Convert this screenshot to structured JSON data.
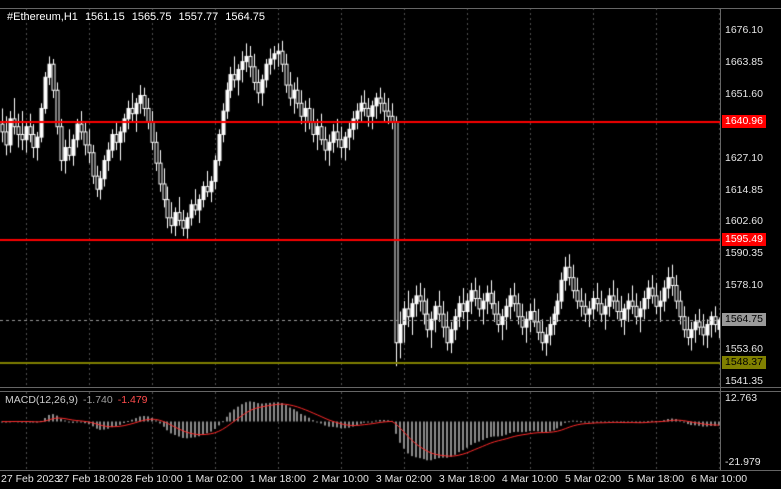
{
  "header": {
    "symbol": "#Ethereum,H1",
    "open": "1561.15",
    "high": "1565.75",
    "low": "1557.77",
    "close": "1564.75"
  },
  "macd_header": {
    "label": "MACD(12,26,9)",
    "value": "-1.740",
    "signal": "-1.479"
  },
  "colors": {
    "background": "#000000",
    "foreground": "#ffffff",
    "grid": "#4f4f4f",
    "border": "#666666",
    "bull_candle": "#ffffff",
    "bear_candle": "#000000",
    "candle_outline": "#ffffff",
    "resistance_line": "#ff0000",
    "support_line": "#808000",
    "current_price_label_bg": "#9a9a9a",
    "current_price_label_fg": "#000000",
    "macd_histogram": "#8c8c8c",
    "macd_signal": "#ff2a2a",
    "axis_text": "#e6e6e6"
  },
  "chart_data": {
    "type": "candlestick",
    "symbol": "#Ethereum",
    "timeframe": "H1",
    "last_ohlc": {
      "open": 1561.15,
      "high": 1565.75,
      "low": 1557.77,
      "close": 1564.75
    },
    "price_axis": {
      "range_top": 1684.6,
      "range_bottom": 1539.0,
      "visible_ticks": [
        1676.1,
        1663.85,
        1651.6,
        1627.1,
        1614.85,
        1602.6,
        1590.35,
        1578.1,
        1553.6,
        1541.35
      ]
    },
    "time_labels": [
      {
        "text": "27 Feb 2023",
        "candle_index": 6
      },
      {
        "text": "27 Feb 18:00",
        "candle_index": 22
      },
      {
        "text": "28 Feb 10:00",
        "candle_index": 38
      },
      {
        "text": "1 Mar 02:00",
        "candle_index": 54
      },
      {
        "text": "1 Mar 18:00",
        "candle_index": 70
      },
      {
        "text": "2 Mar 10:00",
        "candle_index": 86
      },
      {
        "text": "3 Mar 02:00",
        "candle_index": 102
      },
      {
        "text": "3 Mar 18:00",
        "candle_index": 118
      },
      {
        "text": "4 Mar 10:00",
        "candle_index": 134
      },
      {
        "text": "5 Mar 02:00",
        "candle_index": 150
      },
      {
        "text": "5 Mar 18:00",
        "candle_index": 166
      },
      {
        "text": "6 Mar 10:00",
        "candle_index": 182
      }
    ],
    "horizontal_lines": [
      {
        "price": 1640.96,
        "color": "#ff0000",
        "label_bg": "#ff0000",
        "label_fg": "#ffffff"
      },
      {
        "price": 1595.49,
        "color": "#ff0000",
        "label_bg": "#ff0000",
        "label_fg": "#ffffff"
      },
      {
        "price": 1548.37,
        "color": "#808000",
        "label_bg": "#808000",
        "label_fg": "#000000"
      }
    ],
    "current_price": 1564.75,
    "candles_ohlc": [
      [
        1640,
        1646,
        1633,
        1637
      ],
      [
        1637,
        1643,
        1628,
        1632
      ],
      [
        1632,
        1645,
        1629,
        1642
      ],
      [
        1642,
        1650,
        1636,
        1639
      ],
      [
        1639,
        1644,
        1631,
        1636
      ],
      [
        1636,
        1645,
        1630,
        1634
      ],
      [
        1634,
        1641,
        1629,
        1639
      ],
      [
        1639,
        1644,
        1633,
        1636
      ],
      [
        1636,
        1640,
        1627,
        1631
      ],
      [
        1631,
        1637,
        1626,
        1635
      ],
      [
        1635,
        1648,
        1633,
        1646
      ],
      [
        1646,
        1660,
        1644,
        1658
      ],
      [
        1658,
        1666,
        1655,
        1663
      ],
      [
        1663,
        1665,
        1650,
        1653
      ],
      [
        1653,
        1656,
        1636,
        1639
      ],
      [
        1639,
        1642,
        1622,
        1626
      ],
      [
        1626,
        1634,
        1621,
        1631
      ],
      [
        1631,
        1638,
        1626,
        1628
      ],
      [
        1628,
        1636,
        1624,
        1634
      ],
      [
        1634,
        1642,
        1631,
        1640
      ],
      [
        1640,
        1645,
        1634,
        1637
      ],
      [
        1637,
        1641,
        1628,
        1632
      ],
      [
        1632,
        1638,
        1625,
        1629
      ],
      [
        1629,
        1632,
        1617,
        1620
      ],
      [
        1620,
        1624,
        1612,
        1615
      ],
      [
        1615,
        1622,
        1611,
        1619
      ],
      [
        1619,
        1628,
        1616,
        1626
      ],
      [
        1626,
        1633,
        1622,
        1630
      ],
      [
        1630,
        1638,
        1627,
        1636
      ],
      [
        1636,
        1641,
        1630,
        1633
      ],
      [
        1633,
        1639,
        1626,
        1637
      ],
      [
        1637,
        1644,
        1633,
        1642
      ],
      [
        1642,
        1649,
        1638,
        1646
      ],
      [
        1646,
        1652,
        1641,
        1644
      ],
      [
        1644,
        1650,
        1637,
        1648
      ],
      [
        1648,
        1655,
        1644,
        1651
      ],
      [
        1651,
        1654,
        1643,
        1646
      ],
      [
        1646,
        1650,
        1638,
        1641
      ],
      [
        1641,
        1645,
        1630,
        1633
      ],
      [
        1633,
        1637,
        1622,
        1625
      ],
      [
        1625,
        1630,
        1614,
        1617
      ],
      [
        1617,
        1623,
        1608,
        1611
      ],
      [
        1611,
        1616,
        1600,
        1604
      ],
      [
        1604,
        1610,
        1598,
        1601
      ],
      [
        1601,
        1608,
        1597,
        1606
      ],
      [
        1606,
        1612,
        1601,
        1603
      ],
      [
        1603,
        1607,
        1597,
        1600
      ],
      [
        1600,
        1606,
        1596,
        1604
      ],
      [
        1604,
        1611,
        1601,
        1609
      ],
      [
        1609,
        1615,
        1605,
        1607
      ],
      [
        1607,
        1613,
        1602,
        1611
      ],
      [
        1611,
        1618,
        1608,
        1616
      ],
      [
        1616,
        1622,
        1612,
        1614
      ],
      [
        1614,
        1620,
        1610,
        1618
      ],
      [
        1618,
        1628,
        1615,
        1626
      ],
      [
        1626,
        1638,
        1624,
        1636
      ],
      [
        1636,
        1648,
        1633,
        1645
      ],
      [
        1645,
        1656,
        1642,
        1653
      ],
      [
        1653,
        1662,
        1650,
        1659
      ],
      [
        1659,
        1666,
        1654,
        1657
      ],
      [
        1657,
        1663,
        1651,
        1661
      ],
      [
        1661,
        1668,
        1656,
        1664
      ],
      [
        1664,
        1671,
        1660,
        1666
      ],
      [
        1666,
        1670,
        1658,
        1662
      ],
      [
        1662,
        1667,
        1653,
        1656
      ],
      [
        1656,
        1661,
        1648,
        1652
      ],
      [
        1652,
        1659,
        1647,
        1657
      ],
      [
        1657,
        1665,
        1654,
        1663
      ],
      [
        1663,
        1669,
        1659,
        1665
      ],
      [
        1665,
        1670,
        1661,
        1667
      ],
      [
        1667,
        1671,
        1662,
        1668
      ],
      [
        1668,
        1672,
        1660,
        1663
      ],
      [
        1663,
        1667,
        1652,
        1655
      ],
      [
        1655,
        1660,
        1647,
        1650
      ],
      [
        1650,
        1656,
        1644,
        1653
      ],
      [
        1653,
        1658,
        1646,
        1648
      ],
      [
        1648,
        1653,
        1640,
        1643
      ],
      [
        1643,
        1649,
        1637,
        1646
      ],
      [
        1646,
        1650,
        1638,
        1641
      ],
      [
        1641,
        1646,
        1633,
        1636
      ],
      [
        1636,
        1642,
        1630,
        1639
      ],
      [
        1639,
        1644,
        1632,
        1634
      ],
      [
        1634,
        1639,
        1626,
        1630
      ],
      [
        1630,
        1636,
        1624,
        1633
      ],
      [
        1633,
        1640,
        1629,
        1637
      ],
      [
        1637,
        1642,
        1631,
        1634
      ],
      [
        1634,
        1639,
        1627,
        1631
      ],
      [
        1631,
        1637,
        1626,
        1635
      ],
      [
        1635,
        1641,
        1630,
        1638
      ],
      [
        1638,
        1645,
        1634,
        1642
      ],
      [
        1642,
        1648,
        1638,
        1645
      ],
      [
        1645,
        1651,
        1641,
        1648
      ],
      [
        1648,
        1653,
        1643,
        1646
      ],
      [
        1646,
        1650,
        1639,
        1643
      ],
      [
        1643,
        1649,
        1638,
        1647
      ],
      [
        1647,
        1652,
        1642,
        1650
      ],
      [
        1650,
        1654,
        1644,
        1648
      ],
      [
        1648,
        1652,
        1641,
        1645
      ],
      [
        1645,
        1650,
        1640,
        1643
      ],
      [
        1643,
        1648,
        1638,
        1641
      ],
      [
        1641,
        1643,
        1547,
        1556
      ],
      [
        1556,
        1568,
        1550,
        1563
      ],
      [
        1563,
        1572,
        1556,
        1569
      ],
      [
        1569,
        1576,
        1562,
        1566
      ],
      [
        1566,
        1573,
        1559,
        1571
      ],
      [
        1571,
        1578,
        1566,
        1574
      ],
      [
        1574,
        1579,
        1568,
        1572
      ],
      [
        1572,
        1577,
        1563,
        1567
      ],
      [
        1567,
        1573,
        1558,
        1561
      ],
      [
        1561,
        1568,
        1554,
        1565
      ],
      [
        1565,
        1572,
        1560,
        1570
      ],
      [
        1570,
        1576,
        1564,
        1567
      ],
      [
        1567,
        1572,
        1558,
        1562
      ],
      [
        1562,
        1568,
        1553,
        1556
      ],
      [
        1556,
        1564,
        1552,
        1561
      ],
      [
        1561,
        1569,
        1557,
        1566
      ],
      [
        1566,
        1574,
        1562,
        1571
      ],
      [
        1571,
        1577,
        1565,
        1568
      ],
      [
        1568,
        1575,
        1561,
        1572
      ],
      [
        1572,
        1579,
        1567,
        1576
      ],
      [
        1576,
        1581,
        1570,
        1573
      ],
      [
        1573,
        1578,
        1566,
        1569
      ],
      [
        1569,
        1575,
        1563,
        1572
      ],
      [
        1572,
        1578,
        1567,
        1575
      ],
      [
        1575,
        1580,
        1569,
        1571
      ],
      [
        1571,
        1576,
        1564,
        1567
      ],
      [
        1567,
        1572,
        1560,
        1563
      ],
      [
        1563,
        1569,
        1557,
        1566
      ],
      [
        1566,
        1573,
        1561,
        1570
      ],
      [
        1570,
        1577,
        1565,
        1574
      ],
      [
        1574,
        1579,
        1568,
        1571
      ],
      [
        1571,
        1575,
        1563,
        1566
      ],
      [
        1566,
        1571,
        1559,
        1562
      ],
      [
        1562,
        1568,
        1556,
        1565
      ],
      [
        1565,
        1571,
        1560,
        1568
      ],
      [
        1568,
        1573,
        1562,
        1564
      ],
      [
        1564,
        1569,
        1557,
        1560
      ],
      [
        1560,
        1565,
        1553,
        1556
      ],
      [
        1556,
        1562,
        1551,
        1559
      ],
      [
        1559,
        1566,
        1555,
        1563
      ],
      [
        1563,
        1570,
        1559,
        1567
      ],
      [
        1567,
        1575,
        1564,
        1572
      ],
      [
        1572,
        1583,
        1569,
        1580
      ],
      [
        1580,
        1589,
        1576,
        1585
      ],
      [
        1585,
        1590,
        1578,
        1581
      ],
      [
        1581,
        1586,
        1573,
        1576
      ],
      [
        1576,
        1581,
        1569,
        1572
      ],
      [
        1572,
        1577,
        1566,
        1570
      ],
      [
        1570,
        1575,
        1564,
        1567
      ],
      [
        1567,
        1572,
        1562,
        1569
      ],
      [
        1569,
        1576,
        1565,
        1573
      ],
      [
        1573,
        1579,
        1568,
        1571
      ],
      [
        1571,
        1576,
        1564,
        1567
      ],
      [
        1567,
        1573,
        1561,
        1570
      ],
      [
        1570,
        1577,
        1566,
        1574
      ],
      [
        1574,
        1580,
        1569,
        1572
      ],
      [
        1572,
        1577,
        1565,
        1568
      ],
      [
        1568,
        1574,
        1562,
        1565
      ],
      [
        1565,
        1571,
        1559,
        1569
      ],
      [
        1569,
        1575,
        1564,
        1572
      ],
      [
        1572,
        1578,
        1567,
        1570
      ],
      [
        1570,
        1575,
        1563,
        1566
      ],
      [
        1566,
        1572,
        1560,
        1569
      ],
      [
        1569,
        1576,
        1565,
        1573
      ],
      [
        1573,
        1580,
        1569,
        1577
      ],
      [
        1577,
        1582,
        1571,
        1574
      ],
      [
        1574,
        1579,
        1567,
        1570
      ],
      [
        1570,
        1576,
        1564,
        1572
      ],
      [
        1572,
        1580,
        1568,
        1577
      ],
      [
        1577,
        1585,
        1573,
        1581
      ],
      [
        1581,
        1586,
        1574,
        1578
      ],
      [
        1578,
        1582,
        1569,
        1572
      ],
      [
        1572,
        1576,
        1563,
        1566
      ],
      [
        1566,
        1570,
        1558,
        1561
      ],
      [
        1561,
        1566,
        1555,
        1558
      ],
      [
        1558,
        1564,
        1553,
        1561
      ],
      [
        1561,
        1567,
        1556,
        1564
      ],
      [
        1564,
        1569,
        1559,
        1562
      ],
      [
        1562,
        1567,
        1555,
        1559
      ],
      [
        1559,
        1565,
        1554,
        1563
      ],
      [
        1563,
        1568,
        1558,
        1566
      ],
      [
        1566,
        1570,
        1560,
        1563
      ],
      [
        1561.15,
        1565.75,
        1557.77,
        1564.75
      ]
    ],
    "macd": {
      "label": "MACD(12,26,9)",
      "fast": 12,
      "slow": 26,
      "signal_period": 9,
      "value": -1.74,
      "signal_value": -1.479,
      "scale_max": 12.763,
      "scale_min": -21.979
    }
  }
}
